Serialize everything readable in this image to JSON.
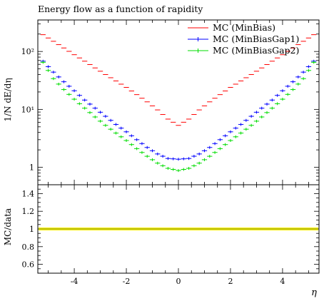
{
  "chart_data": [
    {
      "type": "line",
      "title": "Energy flow as a function of rapidity",
      "ylabel": "1/N dE/dη",
      "yscale": "log",
      "ylim": [
        0.5,
        350
      ],
      "xlim": [
        -5.4,
        5.4
      ],
      "yticks": [
        {
          "value": 1,
          "label": "1"
        },
        {
          "value": 10,
          "label": "10¹"
        },
        {
          "value": 100,
          "label": "10²"
        }
      ],
      "legend": {
        "placement": "top-right"
      },
      "series": [
        {
          "name": "MC (MinBias)",
          "color": "#ff0000",
          "marker": "step",
          "x": [
            -5.2,
            -4.8,
            -4.4,
            -4.0,
            -3.6,
            -3.2,
            -2.8,
            -2.4,
            -2.0,
            -1.6,
            -1.2,
            -0.8,
            -0.4,
            0.0,
            0.4,
            0.8,
            1.2,
            1.6,
            2.0,
            2.4,
            2.8,
            3.2,
            3.6,
            4.0,
            4.4,
            4.8,
            5.2
          ],
          "values": [
            195,
            150,
            115,
            88,
            68,
            52,
            40,
            31,
            24,
            18,
            13.5,
            9.8,
            6.8,
            5.3,
            6.8,
            9.8,
            13.5,
            18,
            24,
            31,
            40,
            52,
            68,
            88,
            115,
            150,
            195
          ]
        },
        {
          "name": "MC (MinBiasGap1)",
          "color": "#0000ff",
          "marker": "plus",
          "x": [
            -5.2,
            -4.8,
            -4.4,
            -4.0,
            -3.6,
            -3.2,
            -2.8,
            -2.4,
            -2.0,
            -1.6,
            -1.2,
            -0.8,
            -0.4,
            0.0,
            0.4,
            0.8,
            1.2,
            1.6,
            2.0,
            2.4,
            2.8,
            3.2,
            3.6,
            4.0,
            4.4,
            4.8,
            5.2
          ],
          "values": [
            68,
            44,
            30,
            21,
            14.5,
            10.5,
            7.6,
            5.5,
            4.1,
            3.0,
            2.2,
            1.7,
            1.42,
            1.38,
            1.42,
            1.7,
            2.2,
            3.0,
            4.1,
            5.5,
            7.6,
            10.5,
            14.5,
            21,
            30,
            44,
            68
          ]
        },
        {
          "name": "MC (MinBiasGap2)",
          "color": "#00dd00",
          "marker": "plus",
          "x": [
            -5.2,
            -4.8,
            -4.4,
            -4.0,
            -3.6,
            -3.2,
            -2.8,
            -2.4,
            -2.0,
            -1.6,
            -1.2,
            -0.8,
            -0.4,
            0.0,
            0.4,
            0.8,
            1.2,
            1.6,
            2.0,
            2.4,
            2.8,
            3.2,
            3.6,
            4.0,
            4.4,
            4.8,
            5.2
          ],
          "values": [
            65,
            34,
            22,
            15,
            10.5,
            7.4,
            5.3,
            3.9,
            2.9,
            2.1,
            1.55,
            1.18,
            0.96,
            0.88,
            0.96,
            1.18,
            1.55,
            2.1,
            2.9,
            3.9,
            5.3,
            7.4,
            10.5,
            15,
            22,
            34,
            65
          ]
        }
      ]
    },
    {
      "type": "line",
      "ylabel": "MC/data",
      "xlabel": "η",
      "ylim": [
        0.5,
        1.5
      ],
      "xlim": [
        -5.4,
        5.4
      ],
      "yticks": [
        {
          "value": 0.6,
          "label": "0.6"
        },
        {
          "value": 0.8,
          "label": "0.8"
        },
        {
          "value": 1.0,
          "label": "1"
        },
        {
          "value": 1.2,
          "label": "1.2"
        },
        {
          "value": 1.4,
          "label": "1.4"
        }
      ],
      "xticks": [
        {
          "value": -4,
          "label": "-4"
        },
        {
          "value": -2,
          "label": "-2"
        },
        {
          "value": 0,
          "label": "0"
        },
        {
          "value": 2,
          "label": "2"
        },
        {
          "value": 4,
          "label": "4"
        }
      ],
      "band_color": "#ffee00",
      "series": [
        {
          "color": "#ff0000",
          "x": [
            -5.4,
            5.4
          ],
          "values": [
            1,
            1
          ]
        },
        {
          "color": "#0000ff",
          "x": [
            -5.4,
            5.4
          ],
          "values": [
            1,
            1
          ]
        },
        {
          "color": "#00dd00",
          "x": [
            -5.4,
            5.4
          ],
          "values": [
            1,
            1
          ]
        }
      ]
    }
  ]
}
